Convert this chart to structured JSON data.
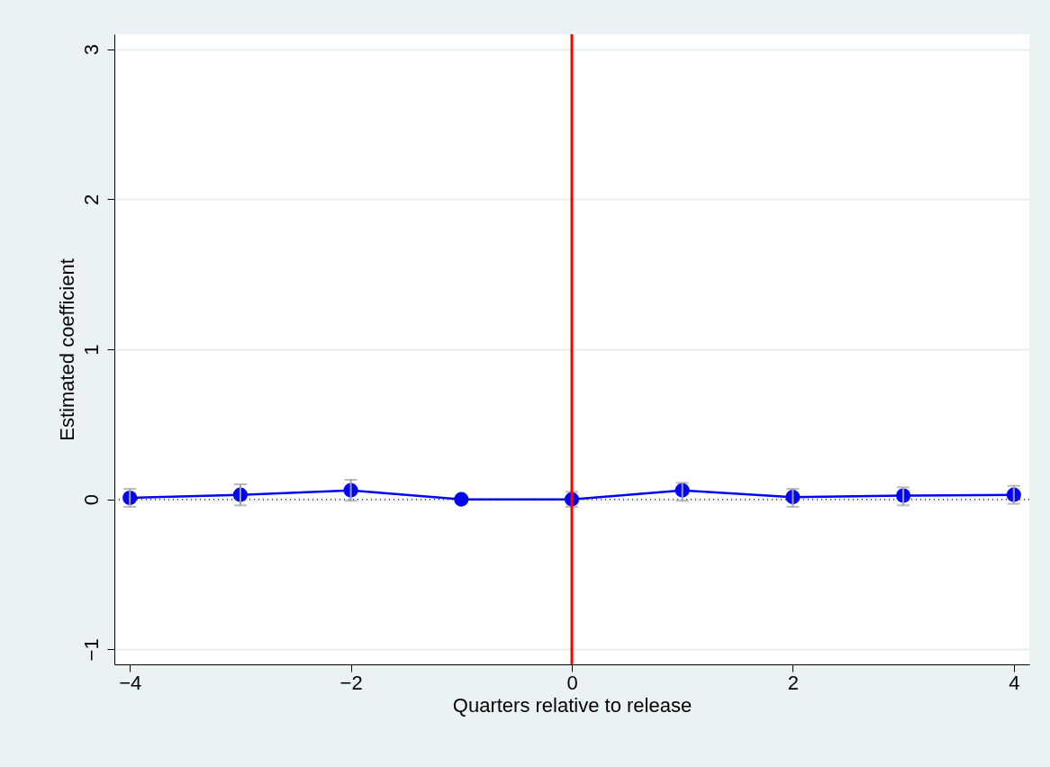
{
  "chart_data": {
    "type": "line",
    "xlabel": "Quarters relative to release",
    "ylabel": "Estimated coefficient",
    "x": [
      -4,
      -3,
      -2,
      -1,
      0,
      1,
      2,
      3,
      4
    ],
    "series": [
      {
        "color": "#0000ff",
        "values": [
          0.01,
          0.03,
          0.06,
          0.0,
          0.0,
          0.06,
          0.015,
          0.025,
          0.03
        ],
        "errors": [
          [
            -0.05,
            0.07
          ],
          [
            -0.04,
            0.1
          ],
          [
            -0.01,
            0.13
          ],
          null,
          [
            -0.05,
            0.05
          ],
          [
            -0.01,
            0.11
          ],
          [
            -0.05,
            0.07
          ],
          [
            -0.04,
            0.08
          ],
          [
            -0.03,
            0.09
          ]
        ]
      }
    ],
    "xlim": [
      -4.14,
      4.14
    ],
    "xticks": [
      -4,
      -2,
      0,
      2,
      4
    ],
    "ylim": [
      -1.1,
      3.1
    ],
    "yticks": [
      -1,
      0,
      1,
      2,
      3
    ],
    "grid": "y",
    "marker": "circle",
    "line_style": "solid",
    "ref_lines": [
      {
        "axis": "x",
        "value": 0,
        "color": "#ff0000",
        "line_style": "solid"
      },
      {
        "axis": "y",
        "value": 0,
        "color": "#333333",
        "line_style": "dotted"
      }
    ]
  }
}
